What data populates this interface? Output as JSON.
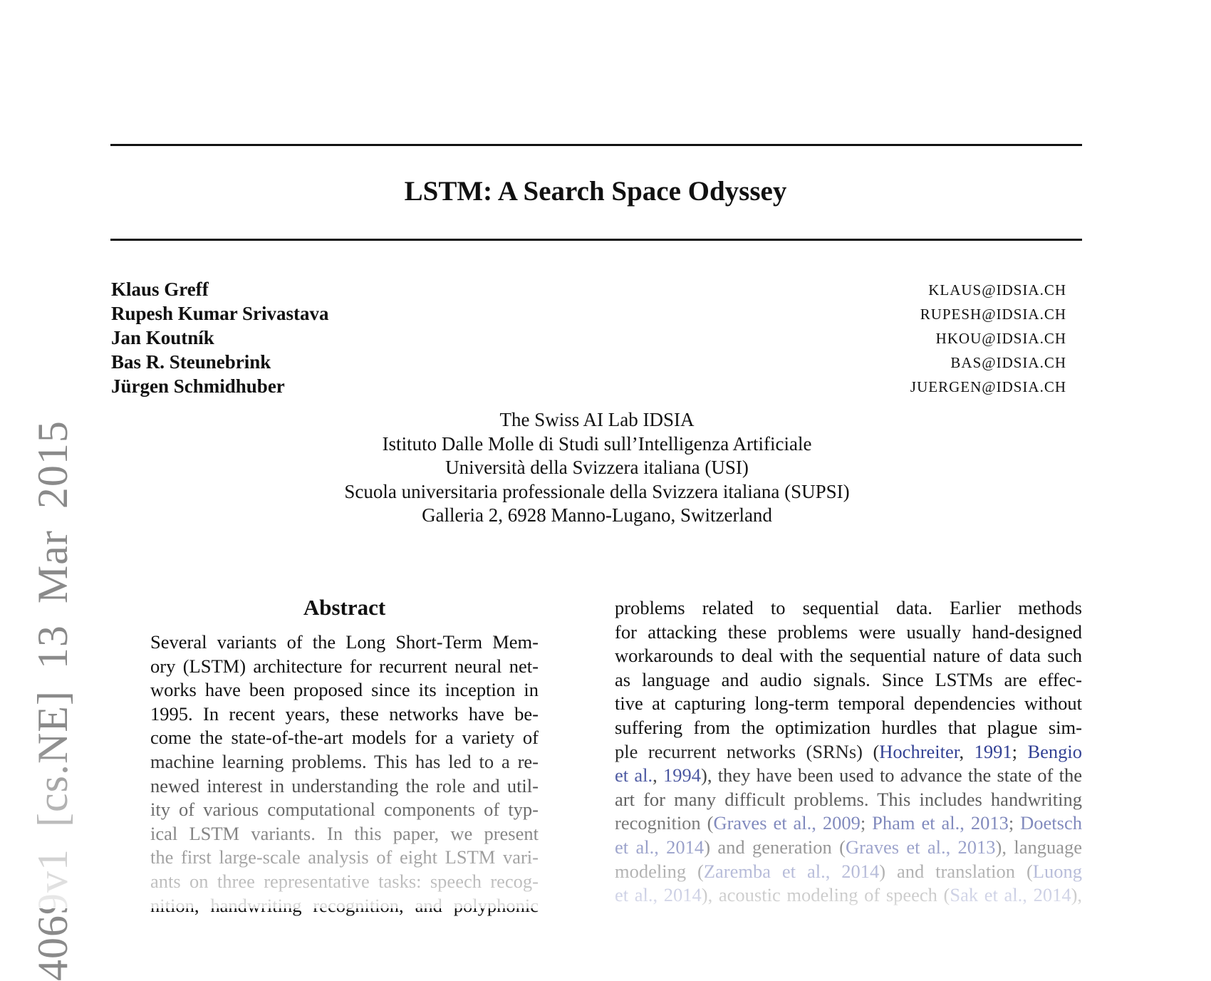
{
  "sidebar": "4069v1 [cs.NE] 13 Mar 2015",
  "header": {
    "title": "LSTM: A Search Space Odyssey"
  },
  "authors": [
    {
      "name": "Klaus Greff",
      "email": "KLAUS@IDSIA.CH"
    },
    {
      "name": "Rupesh Kumar Srivastava",
      "email": "RUPESH@IDSIA.CH"
    },
    {
      "name": "Jan Koutník",
      "email": "HKOU@IDSIA.CH"
    },
    {
      "name": "Bas R. Steunebrink",
      "email": "BAS@IDSIA.CH"
    },
    {
      "name": "Jürgen Schmidhuber",
      "email": "JUERGEN@IDSIA.CH"
    }
  ],
  "affiliation": [
    "The Swiss AI Lab IDSIA",
    "Istituto Dalle Molle di Studi sull’Intelligenza Artificiale",
    "Università della Svizzera italiana (USI)",
    "Scuola universitaria professionale della Svizzera italiana (SUPSI)",
    "Galleria 2, 6928 Manno-Lugano, Switzerland"
  ],
  "abstract": {
    "heading": "Abstract",
    "lines": [
      "Several variants of the Long Short-Term Mem-",
      "ory (LSTM) architecture for recurrent neural net-",
      "works have been proposed since its inception in",
      "1995.  In recent years, these networks have be-",
      "come the state-of-the-art models for a variety of",
      "machine learning problems. This has led to a re-",
      "newed interest in understanding the role and util-",
      "ity of various computational components of typ-",
      "ical LSTM variants.  In this paper, we present",
      "the first large-scale analysis of eight LSTM vari-",
      "ants on three representative tasks: speech recog-",
      "nition, handwriting recognition, and polyphonic"
    ]
  },
  "intro": {
    "lines": [
      [
        {
          "text": "problems related to sequential data.  Earlier methods"
        }
      ],
      [
        {
          "text": "for attacking these problems were usually hand-designed"
        }
      ],
      [
        {
          "text": "workarounds to deal with the sequential nature of data such"
        }
      ],
      [
        {
          "text": "as language and audio signals.  Since LSTMs are effec-"
        }
      ],
      [
        {
          "text": "tive at capturing long-term temporal dependencies without"
        }
      ],
      [
        {
          "text": "suffering from the optimization hurdles that plague sim-"
        }
      ],
      [
        {
          "text": "ple recurrent networks (SRNs) ("
        },
        {
          "text": "Hochreiter",
          "link": true
        },
        {
          "text": ", "
        },
        {
          "text": "1991",
          "link": true
        },
        {
          "text": "; "
        },
        {
          "text": "Bengio",
          "link": true
        }
      ],
      [
        {
          "text": "et al.",
          "link": true
        },
        {
          "text": ", "
        },
        {
          "text": "1994",
          "link": true
        },
        {
          "text": "), they have been used to advance the state of the"
        }
      ],
      [
        {
          "text": "art for many difficult problems. This includes handwriting"
        }
      ],
      [
        {
          "text": "recognition ("
        },
        {
          "text": "Graves et al., 2009",
          "link": true
        },
        {
          "text": "; "
        },
        {
          "text": "Pham et al., 2013",
          "link": true
        },
        {
          "text": "; "
        },
        {
          "text": "Doetsch",
          "link": true
        }
      ],
      [
        {
          "text": "et al., 2014",
          "link": true
        },
        {
          "text": ") and generation ("
        },
        {
          "text": "Graves et al., 2013",
          "link": true
        },
        {
          "text": "), language"
        }
      ],
      [
        {
          "text": "modeling ("
        },
        {
          "text": "Zaremba et al., 2014",
          "link": true
        },
        {
          "text": ") and translation ("
        },
        {
          "text": "Luong",
          "link": true
        }
      ],
      [
        {
          "text": "et al., 2014",
          "link": true
        },
        {
          "text": "), acoustic modeling of speech ("
        },
        {
          "text": "Sak et al., 2014",
          "link": true
        },
        {
          "text": "),"
        }
      ]
    ]
  }
}
